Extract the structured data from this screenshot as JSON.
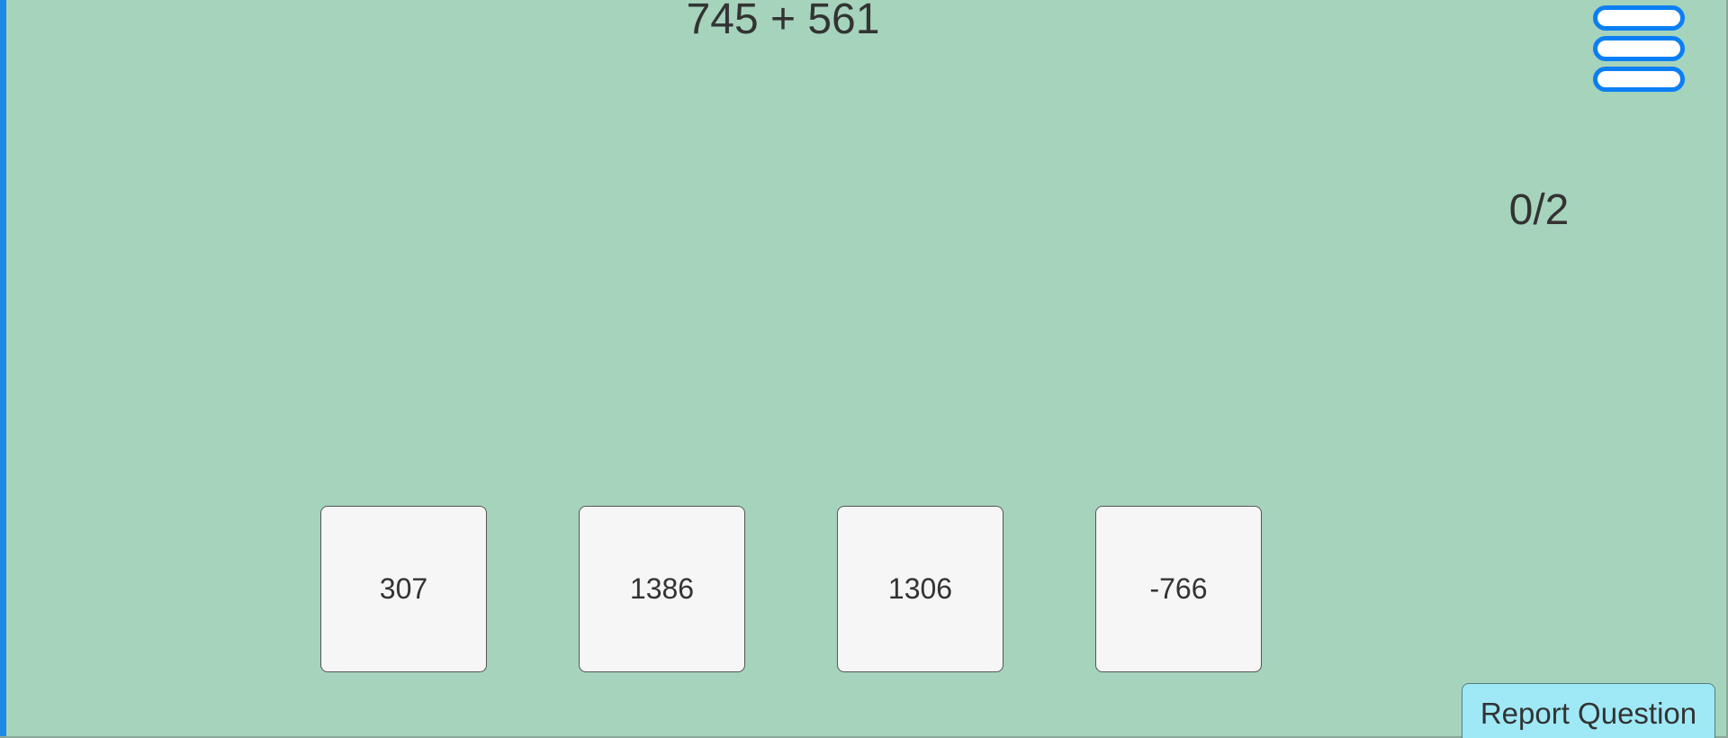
{
  "question": {
    "text": "745 + 561"
  },
  "score": {
    "text": "0/2"
  },
  "answers": [
    {
      "label": "307"
    },
    {
      "label": "1386"
    },
    {
      "label": "1306"
    },
    {
      "label": "-766"
    }
  ],
  "report_button": {
    "label": "Report Question"
  },
  "colors": {
    "background": "#a6d3bc",
    "menu_accent": "#0a7ff5",
    "report_button": "#9fe9f6",
    "answer_tile": "#f6f6f6",
    "left_edge": "#1e88e5"
  },
  "icons": {
    "menu": "hamburger-menu-icon"
  }
}
